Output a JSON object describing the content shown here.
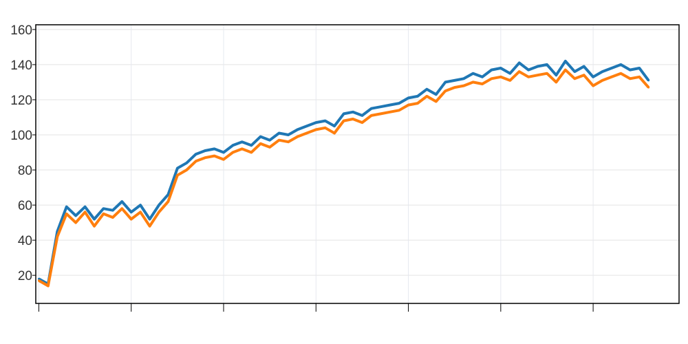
{
  "chart_data": {
    "type": "line",
    "title": "",
    "xlabel": "",
    "ylabel": "",
    "ylim": [
      4,
      162.7
    ],
    "xlim": [
      -3.3,
      693
    ],
    "grid": true,
    "legend": "none",
    "y_ticks": [
      "20",
      "40",
      "60",
      "80",
      "100",
      "120",
      "140",
      "160"
    ],
    "y_tick_values": [
      20,
      40,
      60,
      80,
      100,
      120,
      140,
      160
    ],
    "x_tick_values": [
      0,
      100,
      200,
      300,
      400,
      500,
      600
    ],
    "x": [
      0,
      10,
      20,
      30,
      40,
      50,
      60,
      70,
      80,
      90,
      100,
      110,
      120,
      130,
      140,
      150,
      160,
      170,
      180,
      190,
      200,
      210,
      220,
      230,
      240,
      250,
      260,
      270,
      280,
      290,
      300,
      310,
      320,
      330,
      340,
      350,
      360,
      370,
      380,
      390,
      400,
      410,
      420,
      430,
      440,
      450,
      460,
      470,
      480,
      490,
      500,
      510,
      520,
      530,
      540,
      550,
      560,
      570,
      580,
      590,
      600,
      610,
      620,
      630,
      640,
      650,
      660
    ],
    "series": [
      {
        "color": "#1f77b4",
        "values": [
          18,
          15,
          45,
          59,
          54,
          59,
          52,
          58,
          57,
          62,
          56,
          60,
          52,
          60,
          66,
          81,
          84,
          89,
          91,
          92,
          90,
          94,
          96,
          94,
          99,
          97,
          101,
          100,
          103,
          105,
          107,
          108,
          105,
          112,
          113,
          111,
          115,
          116,
          117,
          118,
          121,
          122,
          126,
          123,
          130,
          131,
          132,
          135,
          133,
          137,
          138,
          135,
          141,
          137,
          139,
          140,
          134,
          142,
          136,
          139,
          133,
          136,
          138,
          140,
          137,
          138,
          131
        ]
      },
      {
        "color": "#ff7f0e",
        "values": [
          17,
          14,
          42,
          55,
          50,
          56,
          48,
          55,
          53,
          58,
          52,
          56,
          48,
          56,
          62,
          77,
          80,
          85,
          87,
          88,
          86,
          90,
          92,
          90,
          95,
          93,
          97,
          96,
          99,
          101,
          103,
          104,
          101,
          108,
          109,
          107,
          111,
          112,
          113,
          114,
          117,
          118,
          122,
          119,
          125,
          127,
          128,
          130,
          129,
          132,
          133,
          131,
          136,
          133,
          134,
          135,
          130,
          137,
          132,
          134,
          128,
          131,
          133,
          135,
          132,
          133,
          127
        ]
      }
    ]
  }
}
